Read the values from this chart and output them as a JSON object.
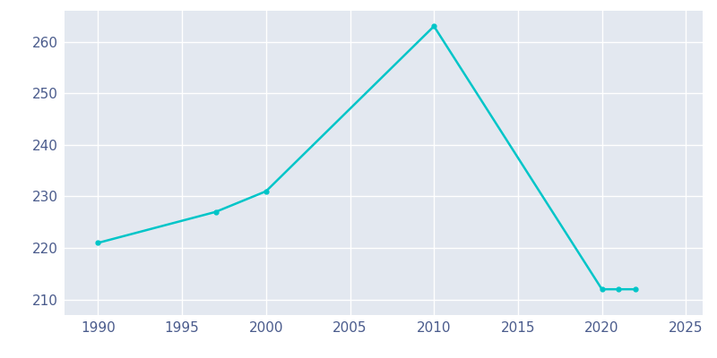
{
  "years": [
    1990,
    1997,
    2000,
    2010,
    2020,
    2021,
    2022
  ],
  "population": [
    221,
    227,
    231,
    263,
    212,
    212,
    212
  ],
  "line_color": "#00C5C8",
  "marker": "o",
  "marker_size": 3.5,
  "linewidth": 1.8,
  "plot_bg_color": "#E3E8F0",
  "fig_bg_color": "#FFFFFF",
  "grid_color": "#FFFFFF",
  "xlim": [
    1988,
    2026
  ],
  "ylim": [
    207,
    266
  ],
  "xticks": [
    1990,
    1995,
    2000,
    2005,
    2010,
    2015,
    2020,
    2025
  ],
  "yticks": [
    210,
    220,
    230,
    240,
    250,
    260
  ],
  "tick_color": "#4A5B8C",
  "tick_fontsize": 11
}
